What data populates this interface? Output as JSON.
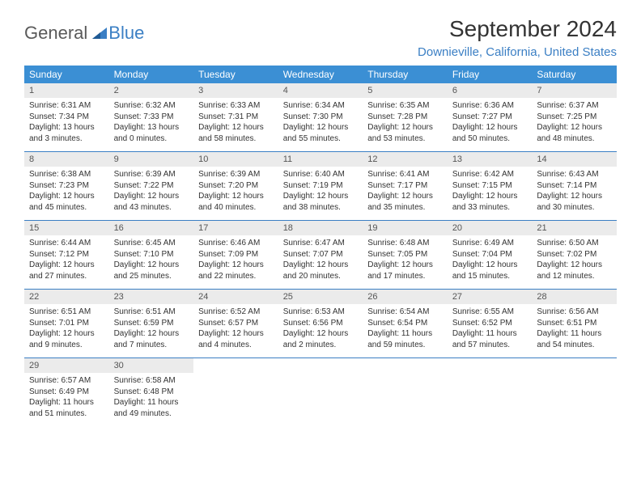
{
  "logo": {
    "text1": "General",
    "text2": "Blue",
    "icon_color": "#3b7fc4"
  },
  "title": "September 2024",
  "location": "Downieville, California, United States",
  "colors": {
    "header_bg": "#3b8fd4",
    "header_text": "#ffffff",
    "daynum_bg": "#ebebeb",
    "border": "#3b7fc4",
    "location_color": "#3b7fc4"
  },
  "weekdays": [
    "Sunday",
    "Monday",
    "Tuesday",
    "Wednesday",
    "Thursday",
    "Friday",
    "Saturday"
  ],
  "days": [
    {
      "num": "1",
      "sunrise": "6:31 AM",
      "sunset": "7:34 PM",
      "daylight": "13 hours and 3 minutes."
    },
    {
      "num": "2",
      "sunrise": "6:32 AM",
      "sunset": "7:33 PM",
      "daylight": "13 hours and 0 minutes."
    },
    {
      "num": "3",
      "sunrise": "6:33 AM",
      "sunset": "7:31 PM",
      "daylight": "12 hours and 58 minutes."
    },
    {
      "num": "4",
      "sunrise": "6:34 AM",
      "sunset": "7:30 PM",
      "daylight": "12 hours and 55 minutes."
    },
    {
      "num": "5",
      "sunrise": "6:35 AM",
      "sunset": "7:28 PM",
      "daylight": "12 hours and 53 minutes."
    },
    {
      "num": "6",
      "sunrise": "6:36 AM",
      "sunset": "7:27 PM",
      "daylight": "12 hours and 50 minutes."
    },
    {
      "num": "7",
      "sunrise": "6:37 AM",
      "sunset": "7:25 PM",
      "daylight": "12 hours and 48 minutes."
    },
    {
      "num": "8",
      "sunrise": "6:38 AM",
      "sunset": "7:23 PM",
      "daylight": "12 hours and 45 minutes."
    },
    {
      "num": "9",
      "sunrise": "6:39 AM",
      "sunset": "7:22 PM",
      "daylight": "12 hours and 43 minutes."
    },
    {
      "num": "10",
      "sunrise": "6:39 AM",
      "sunset": "7:20 PM",
      "daylight": "12 hours and 40 minutes."
    },
    {
      "num": "11",
      "sunrise": "6:40 AM",
      "sunset": "7:19 PM",
      "daylight": "12 hours and 38 minutes."
    },
    {
      "num": "12",
      "sunrise": "6:41 AM",
      "sunset": "7:17 PM",
      "daylight": "12 hours and 35 minutes."
    },
    {
      "num": "13",
      "sunrise": "6:42 AM",
      "sunset": "7:15 PM",
      "daylight": "12 hours and 33 minutes."
    },
    {
      "num": "14",
      "sunrise": "6:43 AM",
      "sunset": "7:14 PM",
      "daylight": "12 hours and 30 minutes."
    },
    {
      "num": "15",
      "sunrise": "6:44 AM",
      "sunset": "7:12 PM",
      "daylight": "12 hours and 27 minutes."
    },
    {
      "num": "16",
      "sunrise": "6:45 AM",
      "sunset": "7:10 PM",
      "daylight": "12 hours and 25 minutes."
    },
    {
      "num": "17",
      "sunrise": "6:46 AM",
      "sunset": "7:09 PM",
      "daylight": "12 hours and 22 minutes."
    },
    {
      "num": "18",
      "sunrise": "6:47 AM",
      "sunset": "7:07 PM",
      "daylight": "12 hours and 20 minutes."
    },
    {
      "num": "19",
      "sunrise": "6:48 AM",
      "sunset": "7:05 PM",
      "daylight": "12 hours and 17 minutes."
    },
    {
      "num": "20",
      "sunrise": "6:49 AM",
      "sunset": "7:04 PM",
      "daylight": "12 hours and 15 minutes."
    },
    {
      "num": "21",
      "sunrise": "6:50 AM",
      "sunset": "7:02 PM",
      "daylight": "12 hours and 12 minutes."
    },
    {
      "num": "22",
      "sunrise": "6:51 AM",
      "sunset": "7:01 PM",
      "daylight": "12 hours and 9 minutes."
    },
    {
      "num": "23",
      "sunrise": "6:51 AM",
      "sunset": "6:59 PM",
      "daylight": "12 hours and 7 minutes."
    },
    {
      "num": "24",
      "sunrise": "6:52 AM",
      "sunset": "6:57 PM",
      "daylight": "12 hours and 4 minutes."
    },
    {
      "num": "25",
      "sunrise": "6:53 AM",
      "sunset": "6:56 PM",
      "daylight": "12 hours and 2 minutes."
    },
    {
      "num": "26",
      "sunrise": "6:54 AM",
      "sunset": "6:54 PM",
      "daylight": "11 hours and 59 minutes."
    },
    {
      "num": "27",
      "sunrise": "6:55 AM",
      "sunset": "6:52 PM",
      "daylight": "11 hours and 57 minutes."
    },
    {
      "num": "28",
      "sunrise": "6:56 AM",
      "sunset": "6:51 PM",
      "daylight": "11 hours and 54 minutes."
    },
    {
      "num": "29",
      "sunrise": "6:57 AM",
      "sunset": "6:49 PM",
      "daylight": "11 hours and 51 minutes."
    },
    {
      "num": "30",
      "sunrise": "6:58 AM",
      "sunset": "6:48 PM",
      "daylight": "11 hours and 49 minutes."
    }
  ],
  "labels": {
    "sunrise": "Sunrise:",
    "sunset": "Sunset:",
    "daylight": "Daylight:"
  },
  "start_offset": 0,
  "total_cells": 35
}
